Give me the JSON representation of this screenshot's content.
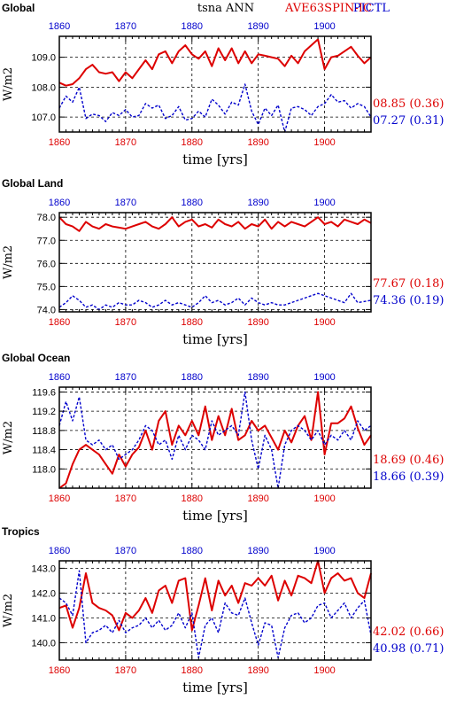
{
  "header": {
    "left_title": "Global",
    "center_title": "tsna ANN",
    "exp1_label": "AVE63SPIN-IC",
    "exp2_label": "PICTL"
  },
  "colors": {
    "exp1": "#dd0000",
    "exp2": "#0000cc",
    "axis": "#000000",
    "grid": "#000000"
  },
  "chart_data": [
    {
      "type": "line",
      "panel_label": "Global",
      "ylabel": "W/m2",
      "xlabel": "time [yrs]",
      "xlim": [
        1860,
        1907
      ],
      "ylim": [
        106.5,
        109.7
      ],
      "xticks": [
        1860,
        1870,
        1880,
        1890,
        1900
      ],
      "xtick_labels": [
        "1860",
        "1870",
        "1880",
        "1890",
        "1900"
      ],
      "yticks": [
        107.0,
        108.0,
        109.0
      ],
      "ytick_labels": [
        "107.0",
        "108.0",
        "109.0"
      ],
      "grid": true,
      "x": [
        1860,
        1861,
        1862,
        1863,
        1864,
        1865,
        1866,
        1867,
        1868,
        1869,
        1870,
        1871,
        1872,
        1873,
        1874,
        1875,
        1876,
        1877,
        1878,
        1879,
        1880,
        1881,
        1882,
        1883,
        1884,
        1885,
        1886,
        1887,
        1888,
        1889,
        1890,
        1891,
        1892,
        1893,
        1894,
        1895,
        1896,
        1897,
        1898,
        1899,
        1900,
        1901,
        1902,
        1903,
        1904,
        1905,
        1906,
        1907
      ],
      "series": [
        {
          "name": "AVE63SPIN-IC",
          "color": "#dd0000",
          "values": [
            108.15,
            108.05,
            108.1,
            108.3,
            108.6,
            108.75,
            108.5,
            108.45,
            108.5,
            108.2,
            108.5,
            108.3,
            108.6,
            108.9,
            108.6,
            109.1,
            109.2,
            108.8,
            109.2,
            109.4,
            109.1,
            108.95,
            109.2,
            108.7,
            109.3,
            108.9,
            109.3,
            108.8,
            109.2,
            108.8,
            109.1,
            109.05,
            109.0,
            108.95,
            108.7,
            109.05,
            108.8,
            109.2,
            109.4,
            109.6,
            108.6,
            109.0,
            109.05,
            109.2,
            109.35,
            109.05,
            108.8,
            109.0
          ],
          "summary": "08.85 (0.36)"
        },
        {
          "name": "PICTL",
          "color": "#0000cc",
          "values": [
            107.3,
            107.7,
            107.5,
            108.0,
            106.95,
            107.1,
            107.05,
            106.85,
            107.15,
            107.05,
            107.25,
            107.0,
            107.05,
            107.45,
            107.3,
            107.4,
            106.95,
            107.05,
            107.35,
            106.9,
            106.95,
            107.2,
            107.0,
            107.6,
            107.4,
            107.1,
            107.5,
            107.4,
            108.1,
            107.2,
            106.75,
            107.3,
            107.05,
            107.4,
            106.45,
            107.3,
            107.35,
            107.25,
            107.05,
            107.35,
            107.45,
            107.75,
            107.5,
            107.55,
            107.3,
            107.45,
            107.35,
            107.0
          ],
          "summary": "07.27 (0.31)"
        }
      ]
    },
    {
      "type": "line",
      "panel_label": "Global Land",
      "ylabel": "W/m2",
      "xlabel": "time [yrs]",
      "xlim": [
        1860,
        1907
      ],
      "ylim": [
        73.9,
        78.2
      ],
      "xticks": [
        1860,
        1870,
        1880,
        1890,
        1900
      ],
      "xtick_labels": [
        "1860",
        "1870",
        "1880",
        "1890",
        "1900"
      ],
      "yticks": [
        74.0,
        75.0,
        76.0,
        77.0,
        78.0
      ],
      "ytick_labels": [
        "74.0",
        "75.0",
        "76.0",
        "77.0",
        "78.0"
      ],
      "grid": true,
      "x": [
        1860,
        1861,
        1862,
        1863,
        1864,
        1865,
        1866,
        1867,
        1868,
        1869,
        1870,
        1871,
        1872,
        1873,
        1874,
        1875,
        1876,
        1877,
        1878,
        1879,
        1880,
        1881,
        1882,
        1883,
        1884,
        1885,
        1886,
        1887,
        1888,
        1889,
        1890,
        1891,
        1892,
        1893,
        1894,
        1895,
        1896,
        1897,
        1898,
        1899,
        1900,
        1901,
        1902,
        1903,
        1904,
        1905,
        1906,
        1907
      ],
      "series": [
        {
          "name": "AVE63SPIN-IC",
          "color": "#dd0000",
          "values": [
            78.0,
            77.7,
            77.6,
            77.4,
            77.8,
            77.6,
            77.5,
            77.7,
            77.6,
            77.55,
            77.5,
            77.6,
            77.7,
            77.8,
            77.6,
            77.5,
            77.7,
            78.0,
            77.6,
            77.8,
            77.9,
            77.6,
            77.7,
            77.55,
            77.9,
            77.7,
            77.6,
            77.8,
            77.5,
            77.7,
            77.6,
            77.9,
            77.5,
            77.8,
            77.6,
            77.8,
            77.7,
            77.6,
            77.8,
            78.0,
            77.7,
            77.8,
            77.6,
            77.9,
            77.8,
            77.7,
            77.9,
            77.75
          ],
          "summary": "77.67 (0.18)"
        },
        {
          "name": "PICTL",
          "color": "#0000cc",
          "values": [
            74.1,
            74.3,
            74.6,
            74.4,
            74.1,
            74.2,
            74.0,
            74.2,
            74.1,
            74.3,
            74.2,
            74.2,
            74.4,
            74.3,
            74.1,
            74.2,
            74.4,
            74.2,
            74.3,
            74.2,
            74.1,
            74.3,
            74.6,
            74.3,
            74.4,
            74.2,
            74.3,
            74.5,
            74.2,
            74.5,
            74.3,
            74.2,
            74.3,
            74.2,
            74.2,
            74.3,
            74.4,
            74.5,
            74.6,
            74.7,
            74.6,
            74.5,
            74.4,
            74.3,
            74.7,
            74.3,
            74.35,
            74.4
          ],
          "summary": "74.36 (0.19)"
        }
      ]
    },
    {
      "type": "line",
      "panel_label": "Global Ocean",
      "ylabel": "W/m2",
      "xlabel": "time [yrs]",
      "xlim": [
        1860,
        1907
      ],
      "ylim": [
        117.6,
        119.7
      ],
      "xticks": [
        1860,
        1870,
        1880,
        1890,
        1900
      ],
      "xtick_labels": [
        "1860",
        "1870",
        "1880",
        "1890",
        "1900"
      ],
      "yticks": [
        118.0,
        118.4,
        118.8,
        119.2,
        119.6
      ],
      "ytick_labels": [
        "118.0",
        "118.4",
        "118.8",
        "119.2",
        "119.6"
      ],
      "grid": true,
      "x": [
        1860,
        1861,
        1862,
        1863,
        1864,
        1865,
        1866,
        1867,
        1868,
        1869,
        1870,
        1871,
        1872,
        1873,
        1874,
        1875,
        1876,
        1877,
        1878,
        1879,
        1880,
        1881,
        1882,
        1883,
        1884,
        1885,
        1886,
        1887,
        1888,
        1889,
        1890,
        1891,
        1892,
        1893,
        1894,
        1895,
        1896,
        1897,
        1898,
        1899,
        1900,
        1901,
        1902,
        1903,
        1904,
        1905,
        1906,
        1907
      ],
      "series": [
        {
          "name": "AVE63SPIN-IC",
          "color": "#dd0000",
          "values": [
            117.6,
            117.7,
            118.1,
            118.4,
            118.5,
            118.4,
            118.3,
            118.1,
            117.9,
            118.3,
            118.05,
            118.3,
            118.45,
            118.8,
            118.4,
            119.0,
            119.2,
            118.5,
            118.9,
            118.7,
            119.0,
            118.7,
            119.3,
            118.6,
            119.1,
            118.7,
            119.25,
            118.6,
            118.7,
            119.0,
            118.8,
            118.9,
            118.65,
            118.4,
            118.8,
            118.55,
            118.9,
            119.1,
            118.6,
            119.6,
            118.3,
            118.95,
            118.95,
            119.05,
            119.3,
            118.85,
            118.5,
            118.7
          ],
          "summary": "18.69 (0.46)"
        },
        {
          "name": "PICTL",
          "color": "#0000cc",
          "values": [
            118.9,
            119.4,
            119.0,
            119.5,
            118.6,
            118.5,
            118.6,
            118.4,
            118.5,
            118.2,
            118.3,
            118.4,
            118.6,
            118.9,
            118.8,
            118.5,
            118.6,
            118.2,
            118.7,
            118.4,
            118.7,
            118.6,
            118.4,
            119.0,
            118.7,
            118.8,
            118.9,
            118.7,
            119.6,
            118.6,
            118.0,
            118.7,
            118.4,
            117.6,
            118.5,
            118.8,
            118.9,
            118.8,
            118.6,
            118.8,
            118.5,
            118.7,
            118.6,
            118.8,
            118.6,
            119.0,
            118.8,
            118.9
          ],
          "summary": "18.66 (0.39)"
        }
      ]
    },
    {
      "type": "line",
      "panel_label": "Tropics",
      "ylabel": "W/m2",
      "xlabel": "time [yrs]",
      "xlim": [
        1860,
        1907
      ],
      "ylim": [
        139.3,
        143.3
      ],
      "xticks": [
        1860,
        1870,
        1880,
        1890,
        1900
      ],
      "xtick_labels": [
        "1860",
        "1870",
        "1880",
        "1890",
        "1900"
      ],
      "yticks": [
        140.0,
        141.0,
        142.0,
        143.0
      ],
      "ytick_labels": [
        "140.0",
        "141.0",
        "142.0",
        "143.0"
      ],
      "grid": true,
      "x": [
        1860,
        1861,
        1862,
        1863,
        1864,
        1865,
        1866,
        1867,
        1868,
        1869,
        1870,
        1871,
        1872,
        1873,
        1874,
        1875,
        1876,
        1877,
        1878,
        1879,
        1880,
        1881,
        1882,
        1883,
        1884,
        1885,
        1886,
        1887,
        1888,
        1889,
        1890,
        1891,
        1892,
        1893,
        1894,
        1895,
        1896,
        1897,
        1898,
        1899,
        1900,
        1901,
        1902,
        1903,
        1904,
        1905,
        1906,
        1907
      ],
      "series": [
        {
          "name": "AVE63SPIN-IC",
          "color": "#dd0000",
          "values": [
            141.4,
            141.5,
            140.6,
            141.4,
            142.8,
            141.6,
            141.4,
            141.3,
            141.1,
            140.5,
            141.2,
            141.0,
            141.3,
            141.8,
            141.2,
            142.1,
            142.3,
            141.6,
            142.5,
            142.6,
            140.5,
            141.5,
            142.6,
            141.3,
            142.5,
            141.9,
            142.3,
            141.6,
            142.4,
            142.3,
            142.6,
            142.3,
            142.7,
            141.7,
            142.5,
            141.9,
            142.7,
            142.6,
            142.4,
            143.3,
            142.0,
            142.6,
            142.8,
            142.5,
            142.6,
            142.0,
            141.8,
            142.8
          ],
          "summary": "42.02 (0.66)"
        },
        {
          "name": "PICTL",
          "color": "#0000cc",
          "values": [
            141.8,
            141.6,
            141.1,
            142.9,
            140.0,
            140.4,
            140.5,
            140.7,
            140.4,
            140.9,
            140.4,
            140.6,
            140.7,
            141.0,
            140.6,
            140.9,
            140.5,
            140.7,
            141.2,
            140.6,
            141.2,
            139.4,
            140.7,
            141.0,
            140.4,
            141.6,
            141.2,
            141.1,
            141.8,
            140.8,
            139.9,
            140.8,
            140.7,
            139.4,
            140.6,
            141.1,
            141.2,
            140.8,
            141.0,
            141.5,
            141.6,
            141.0,
            141.3,
            141.6,
            141.0,
            141.4,
            141.7,
            140.3
          ],
          "summary": "40.98 (0.71)"
        }
      ]
    }
  ]
}
